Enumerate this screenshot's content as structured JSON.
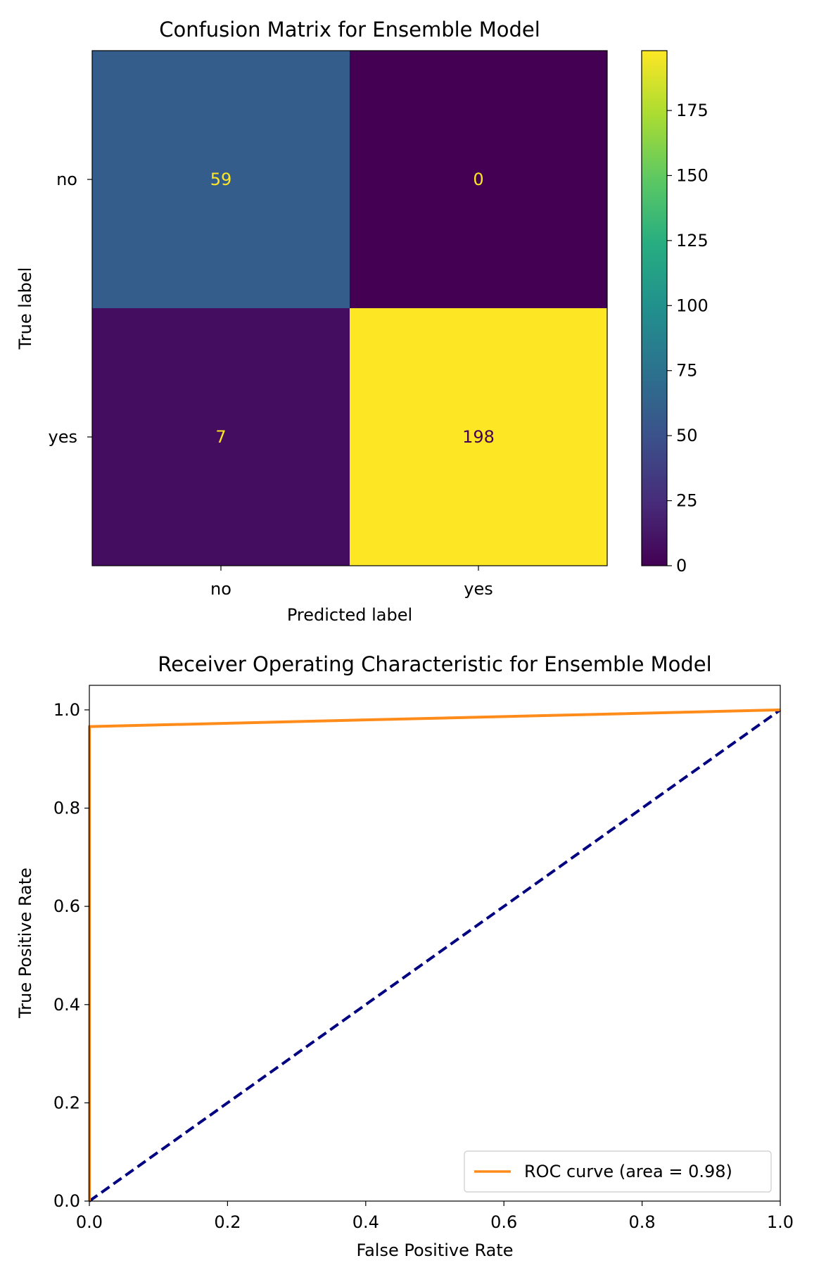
{
  "chart_data": [
    {
      "type": "heatmap",
      "title": "Confusion Matrix for Ensemble Model",
      "xlabel": "Predicted label",
      "ylabel": "True label",
      "x_categories": [
        "no",
        "yes"
      ],
      "y_categories": [
        "no",
        "yes"
      ],
      "values": [
        [
          59,
          0
        ],
        [
          7,
          198
        ]
      ],
      "colormap": "viridis",
      "colorbar": {
        "min": 0,
        "max": 198,
        "ticks": [
          0,
          25,
          50,
          75,
          100,
          125,
          150,
          175
        ]
      },
      "grid": false
    },
    {
      "type": "line",
      "title": "Receiver Operating Characteristic for Ensemble Model",
      "xlabel": "False Positive Rate",
      "ylabel": "True Positive Rate",
      "xlim": [
        0.0,
        1.0
      ],
      "ylim": [
        0.0,
        1.05
      ],
      "xticks": [
        "0.0",
        "0.2",
        "0.4",
        "0.6",
        "0.8",
        "1.0"
      ],
      "yticks": [
        "0.0",
        "0.2",
        "0.4",
        "0.6",
        "0.8",
        "1.0"
      ],
      "grid": false,
      "legend_position": "bottom-right",
      "series": [
        {
          "name": "ROC curve (area = 0.98)",
          "color": "#ff8c1a",
          "style": "solid",
          "x": [
            0.0,
            0.0,
            1.0
          ],
          "y": [
            0.0,
            0.966,
            1.0
          ]
        },
        {
          "color": "#000080",
          "style": "dashed",
          "x": [
            0.0,
            1.0
          ],
          "y": [
            0.0,
            1.0
          ]
        }
      ]
    }
  ]
}
